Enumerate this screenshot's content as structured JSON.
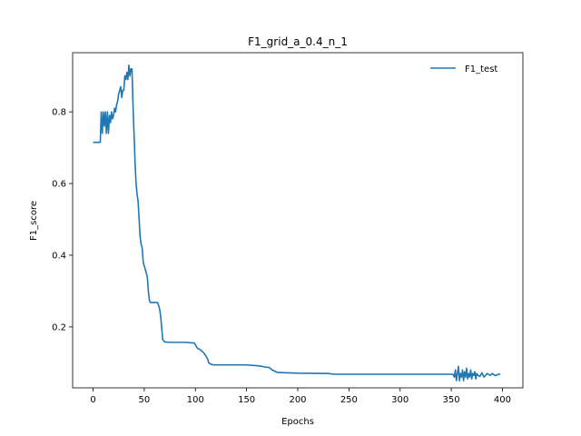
{
  "chart_data": {
    "type": "line",
    "title": "F1_grid_a_0.4_n_1",
    "xlabel": "Epochs",
    "ylabel": "F1_score",
    "xlim": [
      -20,
      420
    ],
    "ylim": [
      0.03,
      0.965
    ],
    "xticks": [
      0,
      50,
      100,
      150,
      200,
      250,
      300,
      350,
      400
    ],
    "yticks": [
      0.2,
      0.4,
      0.6,
      0.8
    ],
    "ytick_labels": [
      "0.2",
      "0.4",
      "0.6",
      "0.8"
    ],
    "grid": false,
    "legend": "upper right",
    "series": [
      {
        "name": "F1_test",
        "color": "#1f77b4",
        "x": [
          0,
          5,
          7,
          8,
          9,
          10,
          11,
          12,
          13,
          14,
          15,
          16,
          17,
          18,
          19,
          20,
          21,
          22,
          23,
          24,
          25,
          26,
          27,
          28,
          29,
          30,
          31,
          32,
          33,
          34,
          35,
          36,
          37,
          38,
          39,
          40,
          41,
          42,
          43,
          44,
          45,
          46,
          47,
          48,
          49,
          50,
          51,
          52,
          53,
          54,
          55,
          56,
          57,
          58,
          59,
          60,
          61,
          62,
          63,
          64,
          65,
          66,
          67,
          68,
          70,
          75,
          80,
          90,
          95,
          99,
          100,
          102,
          104,
          106,
          108,
          110,
          112,
          113,
          115,
          118,
          120,
          130,
          150,
          155,
          160,
          165,
          168,
          172,
          175,
          180,
          190,
          200,
          230,
          235,
          300,
          350,
          352,
          353,
          354,
          355,
          356,
          357,
          358,
          359,
          360,
          361,
          362,
          363,
          364,
          365,
          366,
          367,
          368,
          369,
          370,
          371,
          372,
          373,
          374,
          375,
          376,
          378,
          380,
          382,
          385,
          388,
          390,
          393,
          396,
          398
        ],
        "y": [
          0.715,
          0.715,
          0.715,
          0.8,
          0.74,
          0.8,
          0.76,
          0.8,
          0.74,
          0.8,
          0.74,
          0.79,
          0.77,
          0.8,
          0.78,
          0.79,
          0.81,
          0.8,
          0.82,
          0.83,
          0.85,
          0.86,
          0.87,
          0.84,
          0.86,
          0.86,
          0.9,
          0.89,
          0.91,
          0.89,
          0.93,
          0.9,
          0.92,
          0.92,
          0.82,
          0.74,
          0.66,
          0.6,
          0.57,
          0.55,
          0.5,
          0.45,
          0.43,
          0.42,
          0.38,
          0.37,
          0.36,
          0.35,
          0.34,
          0.3,
          0.275,
          0.268,
          0.268,
          0.268,
          0.268,
          0.268,
          0.268,
          0.268,
          0.268,
          0.26,
          0.25,
          0.23,
          0.2,
          0.165,
          0.158,
          0.157,
          0.157,
          0.157,
          0.156,
          0.155,
          0.15,
          0.14,
          0.138,
          0.133,
          0.128,
          0.12,
          0.11,
          0.1,
          0.096,
          0.094,
          0.094,
          0.094,
          0.094,
          0.093,
          0.092,
          0.09,
          0.088,
          0.087,
          0.08,
          0.073,
          0.072,
          0.071,
          0.07,
          0.068,
          0.068,
          0.068,
          0.067,
          0.06,
          0.08,
          0.05,
          0.07,
          0.09,
          0.05,
          0.07,
          0.06,
          0.08,
          0.05,
          0.075,
          0.06,
          0.085,
          0.055,
          0.07,
          0.06,
          0.08,
          0.055,
          0.07,
          0.065,
          0.075,
          0.055,
          0.07,
          0.065,
          0.062,
          0.072,
          0.06,
          0.07,
          0.065,
          0.07,
          0.064,
          0.068,
          0.068
        ]
      }
    ]
  }
}
